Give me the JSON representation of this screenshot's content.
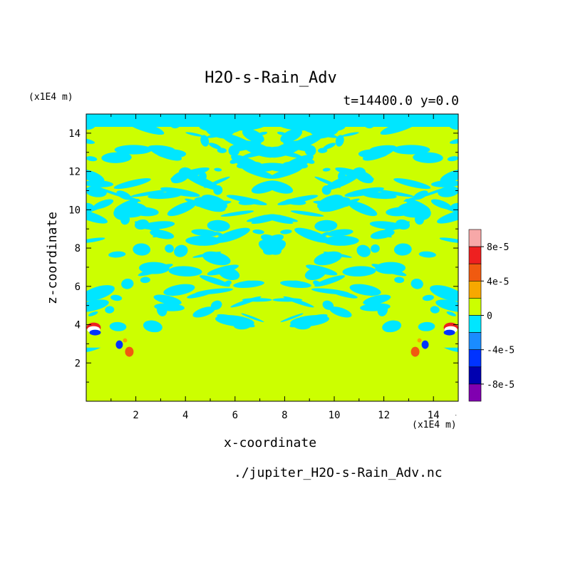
{
  "chart_data": {
    "type": "heatmap",
    "title": "H2O-s-Rain_Adv",
    "subtitle": "t=14400.0 y=0.0",
    "xlabel": "x-coordinate",
    "ylabel": "z-coordinate",
    "x_unit_label": "(x1E4 m)",
    "y_unit_label": "(x1E4 m)",
    "source_label": "./jupiter_H2O-s-Rain_Adv.nc",
    "xlim": [
      0,
      15
    ],
    "ylim": [
      0,
      15
    ],
    "x_ticks": [
      2,
      4,
      6,
      8,
      10,
      12,
      14
    ],
    "y_ticks": [
      2,
      4,
      6,
      8,
      10,
      12,
      14
    ],
    "colorbar": {
      "levels": [
        {
          "color": "#f7a8a8"
        },
        {
          "color": "#ee2020"
        },
        {
          "color": "#f05a10"
        },
        {
          "color": "#f7a800"
        },
        {
          "color": "#ccff00"
        },
        {
          "color": "#00e6ff"
        },
        {
          "color": "#1a8cff"
        },
        {
          "color": "#0033ff"
        },
        {
          "color": "#0000b0"
        },
        {
          "color": "#8000b0"
        }
      ],
      "tick_labels": [
        "8e-5",
        "4e-5",
        "0",
        "-4e-5",
        "-8e-5"
      ]
    },
    "background_color": "#ccff00",
    "negative_color": "#00e6ff",
    "regions_note_visible": false
  }
}
